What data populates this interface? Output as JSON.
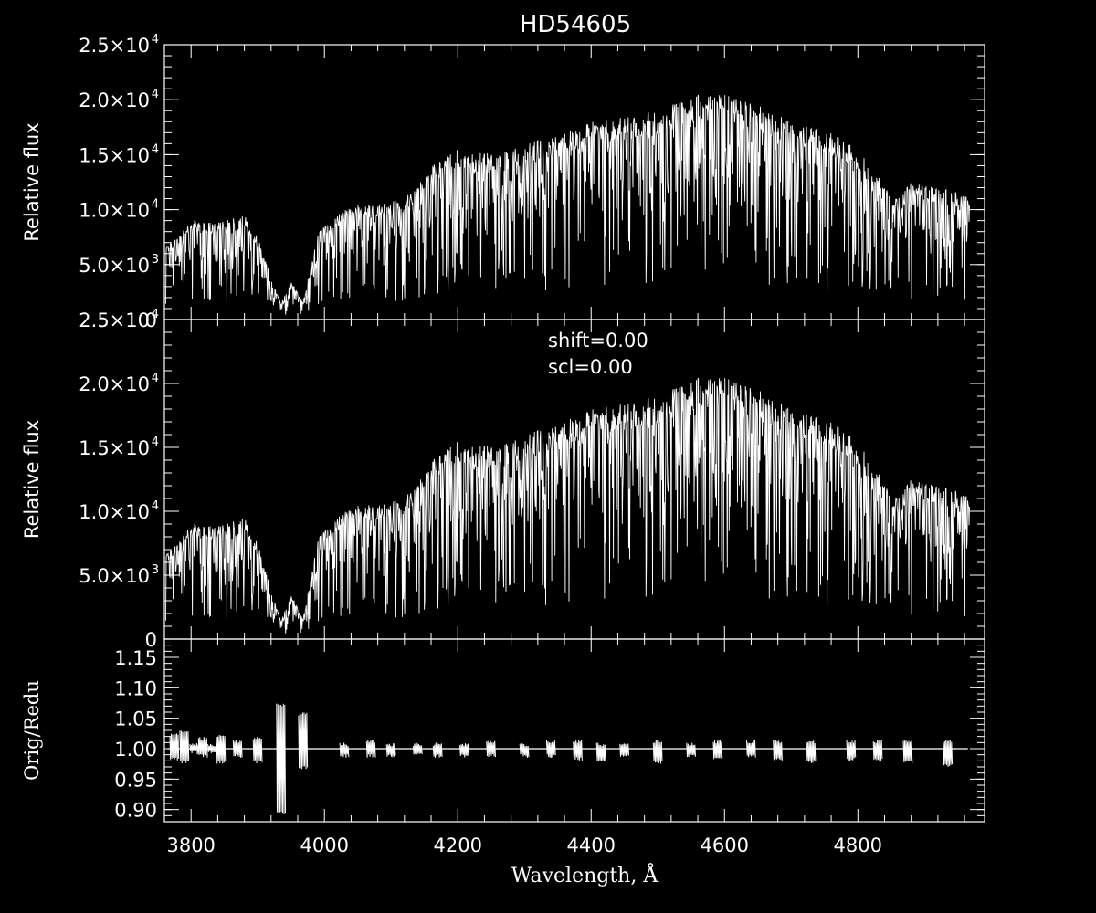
{
  "title": "HD54605",
  "chart_data": [
    {
      "type": "line",
      "ylabel": "Relative flux",
      "xlim": [
        3760,
        4990
      ],
      "ylim": [
        0,
        25000
      ],
      "yticks": [
        {
          "value": 0,
          "label": "0"
        },
        {
          "value": 5000,
          "label": "5.0×10",
          "exp": "3"
        },
        {
          "value": 10000,
          "label": "1.0×10",
          "exp": "4"
        },
        {
          "value": 15000,
          "label": "1.5×10",
          "exp": "4"
        },
        {
          "value": 20000,
          "label": "2.0×10",
          "exp": "4"
        },
        {
          "value": 25000,
          "label": "2.5×10",
          "exp": "4"
        }
      ],
      "envelope": {
        "x": [
          3760,
          3800,
          3840,
          3880,
          3900,
          3920,
          3935,
          3950,
          3968,
          3990,
          4040,
          4080,
          4120,
          4160,
          4200,
          4260,
          4300,
          4360,
          4400,
          4450,
          4500,
          4560,
          4600,
          4650,
          4700,
          4760,
          4800,
          4830,
          4860,
          4880,
          4920,
          4960
        ],
        "y": [
          6500,
          9000,
          8800,
          9500,
          7500,
          4000,
          1500,
          3500,
          1500,
          8000,
          10500,
          10500,
          11000,
          14000,
          15500,
          15000,
          16000,
          17000,
          18000,
          18500,
          19000,
          20500,
          20500,
          19500,
          18000,
          17000,
          15500,
          13000,
          11000,
          12500,
          12000,
          11500
        ]
      }
    },
    {
      "type": "line",
      "ylabel": "Relative flux",
      "annotations": [
        "shift=0.00",
        "scl=0.00"
      ],
      "xlim": [
        3760,
        4990
      ],
      "ylim": [
        0,
        25000
      ],
      "yticks": [
        {
          "value": 0,
          "label": "0"
        },
        {
          "value": 5000,
          "label": "5.0×10",
          "exp": "3"
        },
        {
          "value": 10000,
          "label": "1.0×10",
          "exp": "4"
        },
        {
          "value": 15000,
          "label": "1.5×10",
          "exp": "4"
        },
        {
          "value": 20000,
          "label": "2.0×10",
          "exp": "4"
        },
        {
          "value": 25000,
          "label": "2.5×10",
          "exp": "4"
        }
      ],
      "envelope": {
        "x": [
          3760,
          3800,
          3840,
          3880,
          3900,
          3920,
          3935,
          3950,
          3968,
          3990,
          4040,
          4080,
          4120,
          4160,
          4200,
          4260,
          4300,
          4360,
          4400,
          4450,
          4500,
          4560,
          4600,
          4650,
          4700,
          4760,
          4800,
          4830,
          4860,
          4880,
          4920,
          4960
        ],
        "y": [
          6500,
          9000,
          8800,
          9500,
          7500,
          4000,
          1500,
          3500,
          1500,
          8000,
          10500,
          10500,
          11000,
          14000,
          15500,
          15000,
          16000,
          17000,
          18000,
          18500,
          19000,
          20500,
          20500,
          19500,
          18000,
          17000,
          15500,
          13000,
          11000,
          12500,
          12000,
          11500
        ]
      }
    },
    {
      "type": "line",
      "ylabel": "Orig/Redu",
      "xlabel": "Wavelength, Å",
      "xlim": [
        3760,
        4990
      ],
      "ylim": [
        0.88,
        1.18
      ],
      "xticks": [
        3800,
        4000,
        4200,
        4400,
        4600,
        4800
      ],
      "yticks": [
        {
          "value": 0.9,
          "label": "0.90"
        },
        {
          "value": 0.95,
          "label": "0.95"
        },
        {
          "value": 1.0,
          "label": "1.00"
        },
        {
          "value": 1.05,
          "label": "1.05"
        },
        {
          "value": 1.1,
          "label": "1.10"
        },
        {
          "value": 1.15,
          "label": "1.15"
        }
      ],
      "baseline": 1.0,
      "spikes": [
        {
          "x": 3775,
          "top": 1.025,
          "bottom": 0.98
        },
        {
          "x": 3790,
          "top": 1.03,
          "bottom": 0.975
        },
        {
          "x": 3805,
          "top": 1.01,
          "bottom": 0.99
        },
        {
          "x": 3818,
          "top": 1.02,
          "bottom": 0.985
        },
        {
          "x": 3832,
          "top": 1.01,
          "bottom": 0.99
        },
        {
          "x": 3845,
          "top": 1.025,
          "bottom": 0.975
        },
        {
          "x": 3870,
          "top": 1.015,
          "bottom": 0.985
        },
        {
          "x": 3900,
          "top": 1.02,
          "bottom": 0.975
        },
        {
          "x": 3935,
          "top": 1.075,
          "bottom": 0.89
        },
        {
          "x": 3968,
          "top": 1.06,
          "bottom": 0.965
        },
        {
          "x": 4030,
          "top": 1.01,
          "bottom": 0.985
        },
        {
          "x": 4070,
          "top": 1.015,
          "bottom": 0.985
        },
        {
          "x": 4100,
          "top": 1.01,
          "bottom": 0.985
        },
        {
          "x": 4140,
          "top": 1.01,
          "bottom": 0.99
        },
        {
          "x": 4170,
          "top": 1.01,
          "bottom": 0.985
        },
        {
          "x": 4210,
          "top": 1.01,
          "bottom": 0.985
        },
        {
          "x": 4250,
          "top": 1.015,
          "bottom": 0.985
        },
        {
          "x": 4300,
          "top": 1.01,
          "bottom": 0.985
        },
        {
          "x": 4340,
          "top": 1.015,
          "bottom": 0.985
        },
        {
          "x": 4380,
          "top": 1.015,
          "bottom": 0.98
        },
        {
          "x": 4415,
          "top": 1.01,
          "bottom": 0.975
        },
        {
          "x": 4450,
          "top": 1.01,
          "bottom": 0.985
        },
        {
          "x": 4500,
          "top": 1.015,
          "bottom": 0.975
        },
        {
          "x": 4550,
          "top": 1.01,
          "bottom": 0.985
        },
        {
          "x": 4590,
          "top": 1.015,
          "bottom": 0.98
        },
        {
          "x": 4640,
          "top": 1.015,
          "bottom": 0.985
        },
        {
          "x": 4680,
          "top": 1.015,
          "bottom": 0.98
        },
        {
          "x": 4730,
          "top": 1.015,
          "bottom": 0.975
        },
        {
          "x": 4790,
          "top": 1.015,
          "bottom": 0.98
        },
        {
          "x": 4830,
          "top": 1.015,
          "bottom": 0.98
        },
        {
          "x": 4875,
          "top": 1.015,
          "bottom": 0.975
        },
        {
          "x": 4935,
          "top": 1.015,
          "bottom": 0.97
        }
      ]
    }
  ]
}
